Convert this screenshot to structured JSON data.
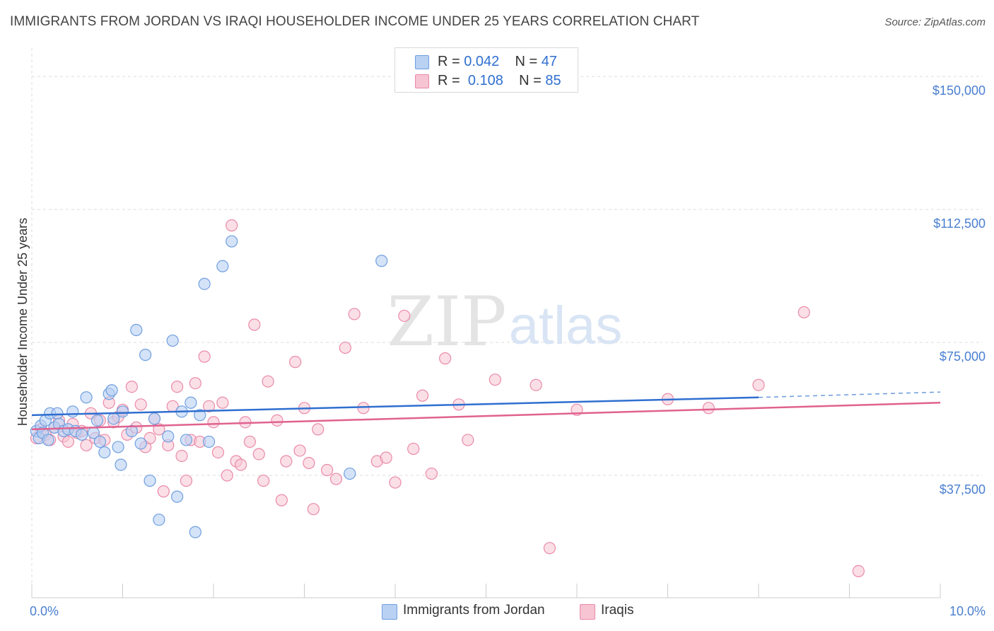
{
  "header": {
    "title": "IMMIGRANTS FROM JORDAN VS IRAQI HOUSEHOLDER INCOME UNDER 25 YEARS CORRELATION CHART",
    "source": "Source: ZipAtlas.com"
  },
  "legend_top": {
    "rows": [
      {
        "r_label": "R =",
        "r_value": "0.042",
        "n_label": "N =",
        "n_value": "47"
      },
      {
        "r_label": "R =",
        "r_value": "0.108",
        "n_label": "N =",
        "n_value": "85"
      }
    ]
  },
  "legend_bottom": {
    "items": [
      "Immigrants from Jordan",
      "Iraqis"
    ]
  },
  "watermark": {
    "zip": "ZIP",
    "atlas": "atlas"
  },
  "colors": {
    "jordan_fill": "#b9d1f3",
    "jordan_stroke": "#6f9fe0",
    "jordan_line": "#2f6fd0",
    "iraqi_fill": "#f7c4d3",
    "iraqi_stroke": "#ea8aa8",
    "iraqi_line": "#e0628f",
    "axis_label": "#4a7fd0",
    "grid": "#dddddd"
  },
  "chart_data": {
    "type": "scatter",
    "title": "IMMIGRANTS FROM JORDAN VS IRAQI HOUSEHOLDER INCOME UNDER 25 YEARS CORRELATION CHART",
    "xlabel": "",
    "ylabel": "Householder Income Under 25 years",
    "xlim": [
      0,
      10
    ],
    "ylim": [
      3000,
      156000
    ],
    "x_tick_labels": [
      "0.0%",
      "10.0%"
    ],
    "y_ticks": [
      37500,
      75000,
      112500,
      150000
    ],
    "y_tick_labels": [
      "$37,500",
      "$75,000",
      "$112,500",
      "$150,000"
    ],
    "grid": true,
    "series": [
      {
        "name": "Immigrants from Jordan",
        "r": 0.042,
        "n": 47,
        "trend": {
          "x0": 0.0,
          "y0": 54500,
          "x1": 8.0,
          "y1": 59500,
          "dash_to_x": 10.0,
          "dash_to_y": 61000
        },
        "points": [
          [
            0.05,
            50000
          ],
          [
            0.08,
            48000
          ],
          [
            0.1,
            51500
          ],
          [
            0.12,
            49500
          ],
          [
            0.15,
            53000
          ],
          [
            0.18,
            47500
          ],
          [
            0.2,
            55000
          ],
          [
            0.25,
            51000
          ],
          [
            0.28,
            55000
          ],
          [
            0.3,
            52000
          ],
          [
            0.35,
            50000
          ],
          [
            0.4,
            50500
          ],
          [
            0.45,
            55500
          ],
          [
            0.48,
            50000
          ],
          [
            0.55,
            49000
          ],
          [
            0.6,
            59500
          ],
          [
            0.68,
            49500
          ],
          [
            0.72,
            53000
          ],
          [
            0.75,
            47000
          ],
          [
            0.8,
            44000
          ],
          [
            0.85,
            60500
          ],
          [
            0.88,
            61500
          ],
          [
            0.9,
            53500
          ],
          [
            0.95,
            45500
          ],
          [
            0.98,
            40500
          ],
          [
            1.0,
            55500
          ],
          [
            1.1,
            50000
          ],
          [
            1.15,
            78500
          ],
          [
            1.2,
            46500
          ],
          [
            1.25,
            71500
          ],
          [
            1.3,
            36000
          ],
          [
            1.35,
            53500
          ],
          [
            1.4,
            25000
          ],
          [
            1.5,
            48500
          ],
          [
            1.55,
            75500
          ],
          [
            1.6,
            31500
          ],
          [
            1.65,
            55500
          ],
          [
            1.7,
            47500
          ],
          [
            1.75,
            58000
          ],
          [
            1.8,
            21500
          ],
          [
            1.85,
            54500
          ],
          [
            1.9,
            91500
          ],
          [
            1.95,
            47000
          ],
          [
            2.1,
            96500
          ],
          [
            2.2,
            103500
          ],
          [
            3.5,
            38000
          ],
          [
            3.85,
            98000
          ]
        ]
      },
      {
        "name": "Iraqis",
        "r": 0.108,
        "n": 85,
        "trend": {
          "x0": 0.0,
          "y0": 50500,
          "x1": 10.0,
          "y1": 58000
        },
        "points": [
          [
            0.05,
            48000
          ],
          [
            0.1,
            50500
          ],
          [
            0.15,
            49000
          ],
          [
            0.2,
            47500
          ],
          [
            0.25,
            51000
          ],
          [
            0.3,
            53000
          ],
          [
            0.35,
            48500
          ],
          [
            0.4,
            47000
          ],
          [
            0.45,
            52000
          ],
          [
            0.5,
            49500
          ],
          [
            0.55,
            50000
          ],
          [
            0.6,
            46000
          ],
          [
            0.65,
            55000
          ],
          [
            0.7,
            48000
          ],
          [
            0.75,
            53000
          ],
          [
            0.8,
            47500
          ],
          [
            0.85,
            58000
          ],
          [
            0.9,
            52500
          ],
          [
            0.95,
            54000
          ],
          [
            1.0,
            56000
          ],
          [
            1.05,
            49000
          ],
          [
            1.1,
            62500
          ],
          [
            1.15,
            51000
          ],
          [
            1.2,
            57500
          ],
          [
            1.25,
            45500
          ],
          [
            1.3,
            48000
          ],
          [
            1.35,
            53500
          ],
          [
            1.4,
            50500
          ],
          [
            1.45,
            33000
          ],
          [
            1.5,
            46000
          ],
          [
            1.55,
            57000
          ],
          [
            1.6,
            62500
          ],
          [
            1.65,
            43000
          ],
          [
            1.7,
            36000
          ],
          [
            1.75,
            47500
          ],
          [
            1.8,
            63500
          ],
          [
            1.85,
            47000
          ],
          [
            1.9,
            71000
          ],
          [
            1.95,
            57000
          ],
          [
            2.0,
            52500
          ],
          [
            2.05,
            44000
          ],
          [
            2.1,
            58000
          ],
          [
            2.15,
            37500
          ],
          [
            2.2,
            108000
          ],
          [
            2.25,
            41500
          ],
          [
            2.3,
            40500
          ],
          [
            2.35,
            52500
          ],
          [
            2.4,
            47000
          ],
          [
            2.45,
            80000
          ],
          [
            2.5,
            43500
          ],
          [
            2.55,
            36000
          ],
          [
            2.6,
            64000
          ],
          [
            2.7,
            53000
          ],
          [
            2.75,
            30500
          ],
          [
            2.8,
            41500
          ],
          [
            2.9,
            69500
          ],
          [
            2.95,
            44500
          ],
          [
            3.0,
            56500
          ],
          [
            3.05,
            41000
          ],
          [
            3.1,
            28000
          ],
          [
            3.15,
            50500
          ],
          [
            3.25,
            39000
          ],
          [
            3.35,
            36500
          ],
          [
            3.45,
            73500
          ],
          [
            3.55,
            83000
          ],
          [
            3.65,
            56500
          ],
          [
            3.8,
            41500
          ],
          [
            3.9,
            42500
          ],
          [
            4.0,
            35500
          ],
          [
            4.1,
            82500
          ],
          [
            4.2,
            45000
          ],
          [
            4.3,
            60000
          ],
          [
            4.4,
            38000
          ],
          [
            4.55,
            70500
          ],
          [
            4.7,
            57500
          ],
          [
            4.8,
            47500
          ],
          [
            5.1,
            64500
          ],
          [
            5.55,
            63000
          ],
          [
            5.7,
            17000
          ],
          [
            6.0,
            56000
          ],
          [
            7.0,
            59000
          ],
          [
            7.45,
            56500
          ],
          [
            8.0,
            63000
          ],
          [
            8.5,
            83500
          ],
          [
            9.1,
            10500
          ]
        ]
      }
    ]
  }
}
